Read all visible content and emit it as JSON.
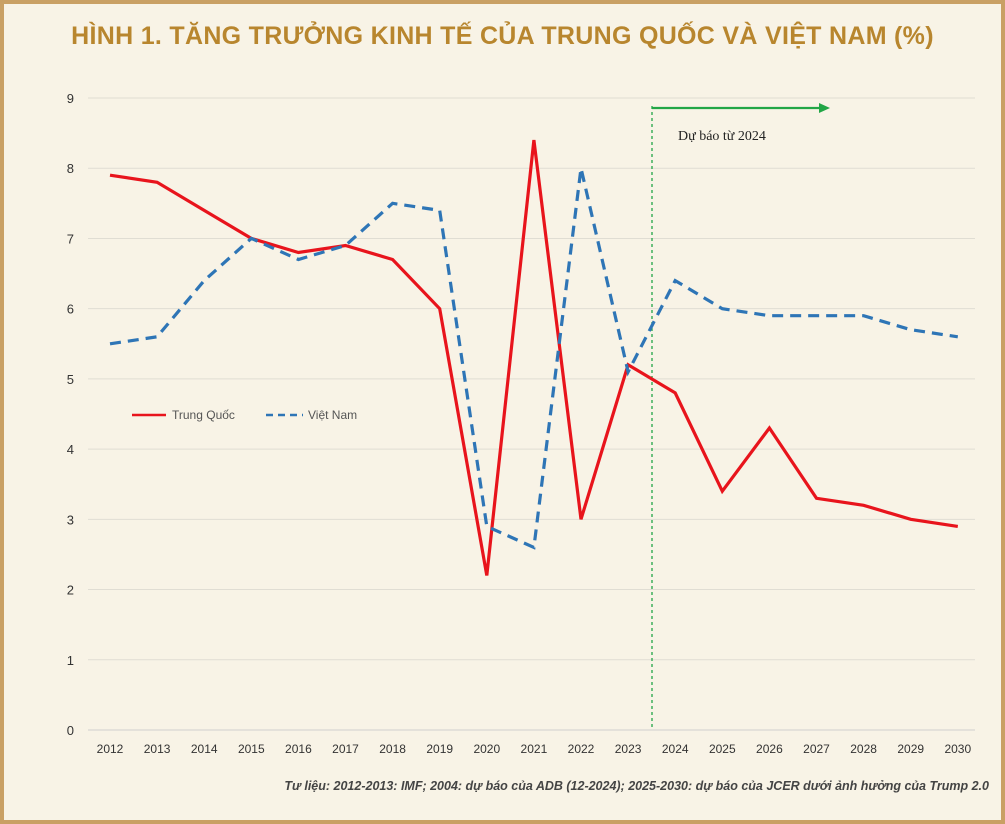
{
  "title": "HÌNH 1. TĂNG TRƯỞNG KINH TẾ CỦA TRUNG QUỐC VÀ VIỆT NAM (%)",
  "source": "Tư liệu: 2012-2013: IMF; 2004: dự báo của ADB (12-2024); 2025-2030: dự báo của JCER dưới ảnh hưởng của Trump 2.0",
  "colors": {
    "china": "#e8141c",
    "vietnam": "#2e75b6",
    "forecast": "#22a646",
    "title": "#b8862e"
  },
  "chart_data": {
    "type": "line",
    "title": "HÌNH 1. TĂNG TRƯỞNG KINH TẾ CỦA TRUNG QUỐC VÀ VIỆT NAM (%)",
    "categories": [
      "2012",
      "2013",
      "2014",
      "2015",
      "2016",
      "2017",
      "2018",
      "2019",
      "2020",
      "2021",
      "2022",
      "2023",
      "2024",
      "2025",
      "2026",
      "2027",
      "2028",
      "2029",
      "2030"
    ],
    "yticks": [
      "0",
      "1",
      "2",
      "3",
      "4",
      "5",
      "6",
      "7",
      "8",
      "9"
    ],
    "ylim": [
      0,
      9
    ],
    "grid": true,
    "legend_position": "middle-left",
    "series": [
      {
        "name": "Trung Quốc",
        "style": "solid",
        "values": [
          7.9,
          7.8,
          7.4,
          7.0,
          6.8,
          6.9,
          6.7,
          6.0,
          2.2,
          8.4,
          3.0,
          5.2,
          4.8,
          3.4,
          4.3,
          3.3,
          3.2,
          3.0,
          2.9
        ]
      },
      {
        "name": "Việt Nam",
        "style": "dashed",
        "values": [
          5.5,
          5.6,
          6.4,
          7.0,
          6.7,
          6.9,
          7.5,
          7.4,
          2.9,
          2.6,
          8.0,
          5.1,
          6.4,
          6.0,
          5.9,
          5.9,
          5.9,
          5.7,
          5.6
        ]
      }
    ],
    "annotation": {
      "text": "Dự báo từ 2024"
    }
  }
}
